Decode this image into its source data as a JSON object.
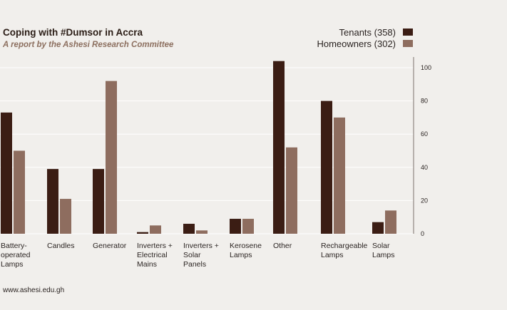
{
  "colors": {
    "tenants": "#3b1d14",
    "homeowners": "#8e6d5f",
    "background": "#f1efec"
  },
  "footer": "www.ashesi.edu.gh",
  "chart_data": {
    "type": "bar",
    "title": "Coping with #Dumsor in Accra",
    "subtitle": "A report by the Ashesi Research Committee",
    "xlabel": "",
    "ylabel": "",
    "ylim": [
      0,
      105
    ],
    "yticks": [
      0,
      20,
      40,
      60,
      80,
      100
    ],
    "grid": true,
    "legend_position": "top-right",
    "categories": [
      [
        "Battery-",
        "operated",
        "Lamps"
      ],
      [
        "Candles"
      ],
      [
        "Generator"
      ],
      [
        "Inverters +",
        "Electrical",
        "Mains"
      ],
      [
        "Inverters +",
        "Solar",
        "Panels"
      ],
      [
        "Kerosene",
        "Lamps"
      ],
      [
        "Other"
      ],
      [
        "Rechargeable",
        "Lamps"
      ],
      [
        "Solar",
        "Lamps"
      ]
    ],
    "series": [
      {
        "name": "Tenants (358)",
        "values": [
          73,
          39,
          39,
          1,
          6,
          9,
          104,
          80,
          7
        ]
      },
      {
        "name": "Homeowners (302)",
        "values": [
          50,
          21,
          92,
          5,
          2,
          9,
          52,
          70,
          14
        ]
      }
    ]
  }
}
